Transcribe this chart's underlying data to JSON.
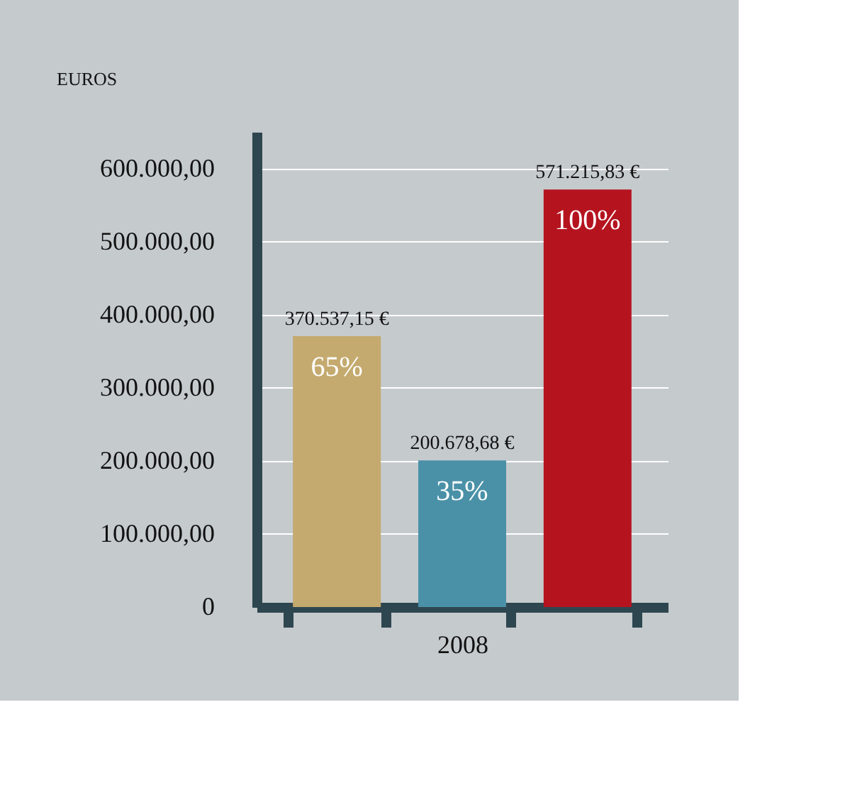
{
  "chart_data": {
    "type": "bar",
    "ylabel": "EUROS",
    "categories": [
      null,
      "2008",
      null
    ],
    "values": [
      370537.15,
      200678.68,
      571215.83
    ],
    "colors": [
      "#c4aa6e",
      "#4a91a8",
      "#b5141f"
    ],
    "value_labels": [
      "370.537,15 €",
      "200.678,68 €",
      "571.215,83 €"
    ],
    "annotations": [
      "65%",
      "35%",
      "100%"
    ],
    "ylim": [
      0,
      650000
    ],
    "yticks": [
      0,
      {
        "value": 100000,
        "label": "100.000,00"
      },
      {
        "value": 200000,
        "label": "200.000,00"
      },
      {
        "value": 300000,
        "label": "300.000,00"
      },
      {
        "value": 400000,
        "label": "400.000,00"
      },
      {
        "value": 500000,
        "label": "500.000,00"
      },
      {
        "value": 600000,
        "label": "600.000,00"
      }
    ],
    "grid": "y"
  }
}
